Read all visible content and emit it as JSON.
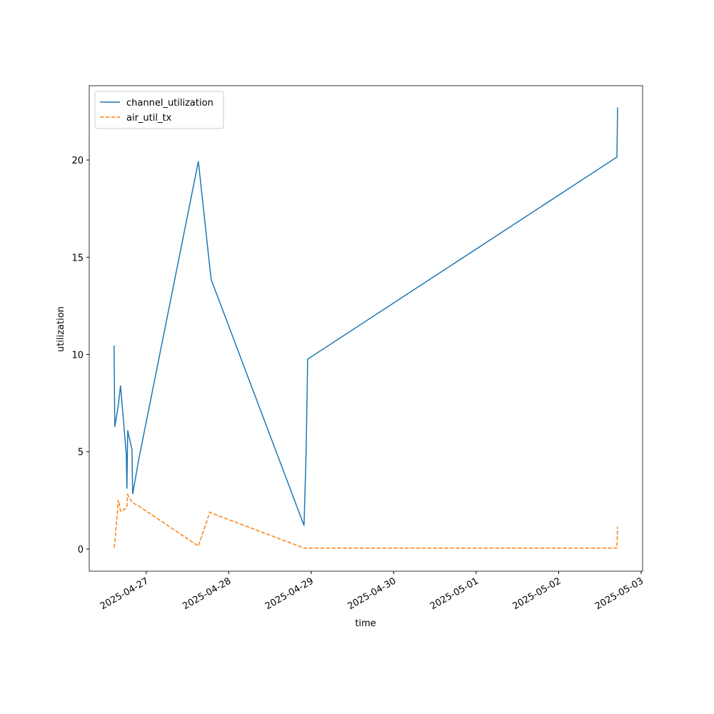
{
  "chart_data": {
    "type": "line",
    "x_label": "time",
    "y_label": "utilization",
    "x": [
      "2025-04-26T14:38",
      "2025-04-26T14:51",
      "2025-04-26T15:53",
      "2025-04-26T16:31",
      "2025-04-26T18:11",
      "2025-04-26T18:23",
      "2025-04-26T18:36",
      "2025-04-26T19:51",
      "2025-04-26T20:03",
      "2025-04-26T21:55",
      "2025-04-27T15:10",
      "2025-04-27T18:30",
      "2025-04-27T18:55",
      "2025-04-28T21:55",
      "2025-04-28T22:32",
      "2025-04-28T22:58",
      "2025-05-02T16:57",
      "2025-05-02T17:08"
    ],
    "series": [
      {
        "name": "channel_utilization",
        "color": "#1f77b4",
        "linestyle": "solid",
        "values": [
          10.46,
          6.28,
          7.4,
          8.4,
          4.9,
          3.1,
          6.1,
          5.1,
          2.83,
          4.7,
          19.93,
          14.46,
          13.84,
          1.21,
          5.1,
          9.76,
          20.15,
          22.7
        ]
      },
      {
        "name": "air_util_tx",
        "color": "#ff7f0e",
        "linestyle": "dashed",
        "values": [
          0.07,
          0.3,
          2.53,
          1.94,
          2.1,
          2.2,
          2.8,
          2.4,
          2.38,
          2.2,
          0.15,
          1.9,
          1.85,
          0.05,
          0.05,
          0.05,
          0.05,
          1.15
        ]
      }
    ],
    "xlim": [
      "2025-04-26T07:25",
      "2025-05-03T00:25"
    ],
    "xticks": [
      "2025-04-27",
      "2025-04-28",
      "2025-04-29",
      "2025-04-30",
      "2025-05-01",
      "2025-05-02",
      "2025-05-03"
    ],
    "ylim": [
      -1.14,
      23.82
    ],
    "yticks": [
      0,
      5,
      10,
      15,
      20
    ],
    "legend": "upper left",
    "grid": false
  }
}
